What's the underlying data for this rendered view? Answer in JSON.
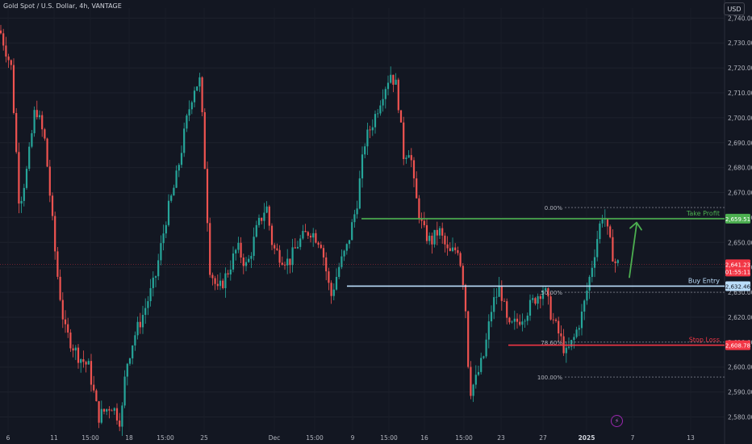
{
  "header": {
    "symbol_title": "Gold Spot / U.S. Dollar, 4h, VANTAGE",
    "currency_button": "USD"
  },
  "colors": {
    "background": "#131722",
    "up_candle": "#26a69a",
    "down_candle": "#ef5350",
    "take_profit": "#4caf50",
    "buy_entry": "#bbdefb",
    "stop_loss": "#f23645",
    "arrow": "#4caf50",
    "current_price": "#f23645",
    "fib_lines": "#787b86"
  },
  "chart_data": {
    "type": "candlestick",
    "timeframe": "4h",
    "y_axis": {
      "min": 2574,
      "max": 2744,
      "ticks": [
        2580,
        2590,
        2600,
        2610,
        2620,
        2630,
        2640,
        2650,
        2660,
        2670,
        2680,
        2690,
        2700,
        2710,
        2720,
        2730,
        2740
      ],
      "tick_labels": [
        "2,580.00",
        "2,590.00",
        "2,600.00",
        "2,610.00",
        "2,620.00",
        "2,630.00",
        "2,640.00",
        "2,650.00",
        "2,660.00",
        "2,670.00",
        "2,680.00",
        "2,690.00",
        "2,700.00",
        "2,710.00",
        "2,720.00",
        "2,730.00",
        "2,740.00"
      ]
    },
    "x_axis": {
      "tick_labels": [
        "6",
        "11",
        "15:00",
        "18",
        "15:00",
        "25",
        "Dec",
        "15:00",
        "9",
        "15:00",
        "16",
        "15:00",
        "23",
        "27",
        "2025",
        "7",
        "13"
      ]
    },
    "price_path": [
      [
        0,
        2735
      ],
      [
        14,
        2720
      ],
      [
        24,
        2665
      ],
      [
        34,
        2680
      ],
      [
        44,
        2705
      ],
      [
        56,
        2690
      ],
      [
        70,
        2640
      ],
      [
        80,
        2615
      ],
      [
        96,
        2605
      ],
      [
        110,
        2600
      ],
      [
        122,
        2580
      ],
      [
        138,
        2585
      ],
      [
        150,
        2578
      ],
      [
        156,
        2600
      ],
      [
        166,
        2612
      ],
      [
        176,
        2620
      ],
      [
        192,
        2635
      ],
      [
        206,
        2660
      ],
      [
        218,
        2675
      ],
      [
        232,
        2700
      ],
      [
        240,
        2712
      ],
      [
        248,
        2715
      ],
      [
        254,
        2680
      ],
      [
        260,
        2640
      ],
      [
        270,
        2630
      ],
      [
        282,
        2638
      ],
      [
        294,
        2648
      ],
      [
        306,
        2640
      ],
      [
        318,
        2655
      ],
      [
        330,
        2665
      ],
      [
        338,
        2648
      ],
      [
        346,
        2645
      ],
      [
        358,
        2642
      ],
      [
        370,
        2650
      ],
      [
        384,
        2655
      ],
      [
        398,
        2650
      ],
      [
        410,
        2628
      ],
      [
        420,
        2640
      ],
      [
        430,
        2648
      ],
      [
        442,
        2665
      ],
      [
        452,
        2690
      ],
      [
        464,
        2700
      ],
      [
        474,
        2710
      ],
      [
        484,
        2718
      ],
      [
        492,
        2712
      ],
      [
        500,
        2685
      ],
      [
        508,
        2688
      ],
      [
        514,
        2670
      ],
      [
        524,
        2655
      ],
      [
        534,
        2650
      ],
      [
        544,
        2655
      ],
      [
        556,
        2645
      ],
      [
        568,
        2648
      ],
      [
        576,
        2630
      ],
      [
        582,
        2590
      ],
      [
        590,
        2595
      ],
      [
        600,
        2605
      ],
      [
        610,
        2625
      ],
      [
        620,
        2632
      ],
      [
        630,
        2615
      ],
      [
        640,
        2618
      ],
      [
        652,
        2622
      ],
      [
        664,
        2628
      ],
      [
        674,
        2632
      ],
      [
        684,
        2620
      ],
      [
        694,
        2612
      ],
      [
        702,
        2605
      ],
      [
        712,
        2612
      ],
      [
        722,
        2622
      ],
      [
        732,
        2638
      ],
      [
        742,
        2655
      ],
      [
        748,
        2663
      ],
      [
        754,
        2652
      ],
      [
        762,
        2642
      ],
      [
        768,
        2641
      ]
    ],
    "current_price": {
      "value": 2641.23,
      "label": "2,641.23",
      "countdown": "01:55:11"
    },
    "levels": [
      {
        "name": "Take Profit",
        "value": 2659.51,
        "label": "2,659.51"
      },
      {
        "name": "Buy Entry",
        "value": 2632.46,
        "label": "2,632.46"
      },
      {
        "name": "Stop Loss",
        "value": 2608.78,
        "label": "2,608.78"
      }
    ],
    "fibonacci": [
      {
        "label": "0.00%",
        "value": 2664
      },
      {
        "label": "50.00%",
        "value": 2630
      },
      {
        "label": "78.60%",
        "value": 2610
      },
      {
        "label": "100.00%",
        "value": 2596
      }
    ]
  }
}
